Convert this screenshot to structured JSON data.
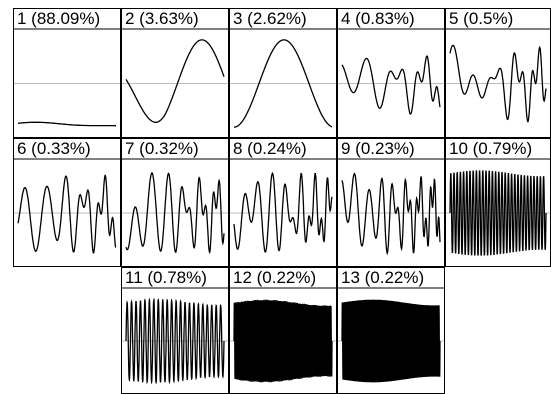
{
  "chart_data": {
    "type": "line",
    "layout": "small-multiples",
    "grid_columns": 5,
    "grid_rows": 3,
    "reference_line": "horizontal gray midline in each panel",
    "axes_ticks": false,
    "panels": [
      {
        "label": "1 (88.09%)",
        "row": 0,
        "col": 0,
        "shape": "flat",
        "amplitude": 0.04,
        "offset": -0.82
      },
      {
        "label": "2 (3.63%)",
        "row": 0,
        "col": 1,
        "shape": "wave",
        "cycles": 1.0,
        "phase": 0.15,
        "amplitude": 0.9
      },
      {
        "label": "3 (2.62%)",
        "row": 0,
        "col": 2,
        "shape": "bump",
        "amplitude": 0.9
      },
      {
        "label": "4 (0.83%)",
        "row": 0,
        "col": 3,
        "shape": "chirp",
        "cycles": 3.5,
        "amplitude": 0.6
      },
      {
        "label": "5 (0.5%)",
        "row": 0,
        "col": 4,
        "shape": "chirp",
        "cycles": 4.5,
        "amplitude": 0.75
      },
      {
        "label": "6 (0.33%)",
        "row": 1,
        "col": 0,
        "shape": "chirp",
        "cycles": 5,
        "amplitude": 0.8
      },
      {
        "label": "7 (0.32%)",
        "row": 1,
        "col": 1,
        "shape": "chirp",
        "cycles": 6,
        "amplitude": 0.8
      },
      {
        "label": "8 (0.24%)",
        "row": 1,
        "col": 2,
        "shape": "chirp",
        "cycles": 7,
        "amplitude": 0.8
      },
      {
        "label": "9 (0.23%)",
        "row": 1,
        "col": 3,
        "shape": "chirp",
        "cycles": 7.5,
        "amplitude": 0.8
      },
      {
        "label": "10 (0.79%)",
        "row": 1,
        "col": 4,
        "shape": "oscillation",
        "cycles": 30,
        "amplitude": 0.88
      },
      {
        "label": "11 (0.78%)",
        "row": 2,
        "col": 1,
        "shape": "oscillation",
        "cycles": 22,
        "amplitude": 0.88
      },
      {
        "label": "12 (0.22%)",
        "row": 2,
        "col": 2,
        "shape": "oscillation",
        "cycles": 70,
        "amplitude": 0.88
      },
      {
        "label": "13 (0.22%)",
        "row": 2,
        "col": 3,
        "shape": "oscillation",
        "cycles": 75,
        "amplitude": 0.88
      }
    ]
  }
}
